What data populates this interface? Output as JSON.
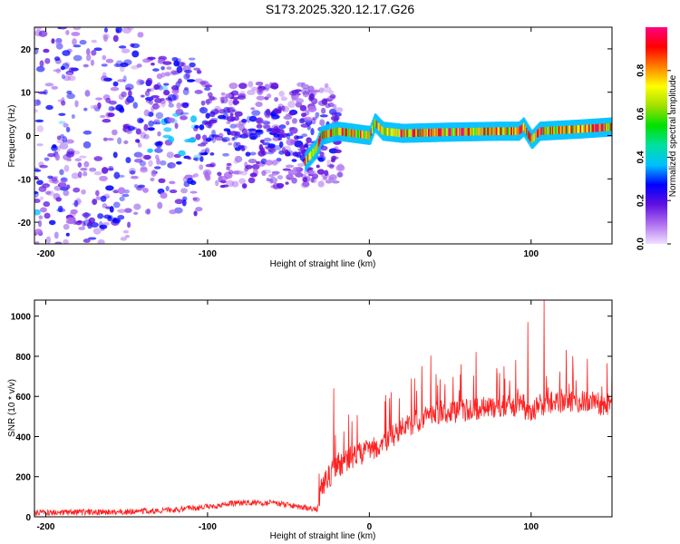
{
  "title": "S173.2025.320.12.17.G26",
  "chart_data": [
    {
      "type": "heatmap",
      "xlabel": "Height of straight line (km)",
      "ylabel": "Frequency (Hz)",
      "xlim": [
        -207,
        150
      ],
      "ylim": [
        -25,
        25
      ],
      "xticks": [
        -200,
        -100,
        0,
        100
      ],
      "yticks": [
        -20,
        -10,
        0,
        10,
        20
      ],
      "colorbar": {
        "label": "Normalized spectral amplitude",
        "range": [
          0,
          1
        ],
        "ticks": [
          0.0,
          0.2,
          0.4,
          0.6,
          0.8
        ],
        "tick_labels": [
          "0.0",
          "0.2",
          "0.4",
          "0.6",
          "0.8"
        ],
        "colors": [
          "#f0e0ff",
          "#b070f0",
          "#6010e0",
          "#0000ff",
          "#00c0ff",
          "#00e0a0",
          "#00e000",
          "#a0e000",
          "#ffff00",
          "#ff8000",
          "#ff0000",
          "#ff0080"
        ]
      },
      "ridge": {
        "x": [
          -40,
          -33,
          -30,
          -20,
          -10,
          0,
          3,
          8,
          20,
          50,
          80,
          92,
          95,
          100,
          105,
          130,
          150
        ],
        "y": [
          -6,
          -3,
          0,
          1,
          0.5,
          0,
          3,
          1,
          0.5,
          0.8,
          1,
          1,
          2,
          -1,
          1,
          1.5,
          2
        ]
      }
    },
    {
      "type": "line",
      "xlabel": "Height of straight line (km)",
      "ylabel": "SNR (10 * v/v)",
      "xlim": [
        -207,
        150
      ],
      "ylim": [
        0,
        1080
      ],
      "xticks": [
        -200,
        -100,
        0,
        100
      ],
      "yticks": [
        0,
        200,
        400,
        600,
        800,
        1000
      ],
      "series": [
        {
          "name": "SNR",
          "color": "#ff2020",
          "trend_x": [
            -207,
            -150,
            -120,
            -100,
            -80,
            -60,
            -40,
            -32,
            -30,
            -25,
            -20,
            -10,
            0,
            10,
            20,
            30,
            40,
            60,
            80,
            95,
            100,
            105,
            120,
            150
          ],
          "trend_y": [
            20,
            25,
            35,
            50,
            70,
            70,
            45,
            40,
            150,
            200,
            250,
            300,
            330,
            380,
            440,
            480,
            520,
            530,
            550,
            560,
            500,
            560,
            580,
            560
          ],
          "notable_peaks": [
            {
              "x": -22,
              "y": 640
            },
            {
              "x": 98,
              "y": 970
            },
            {
              "x": 108,
              "y": 1080
            },
            {
              "x": 150,
              "y": 760
            }
          ]
        }
      ]
    }
  ]
}
